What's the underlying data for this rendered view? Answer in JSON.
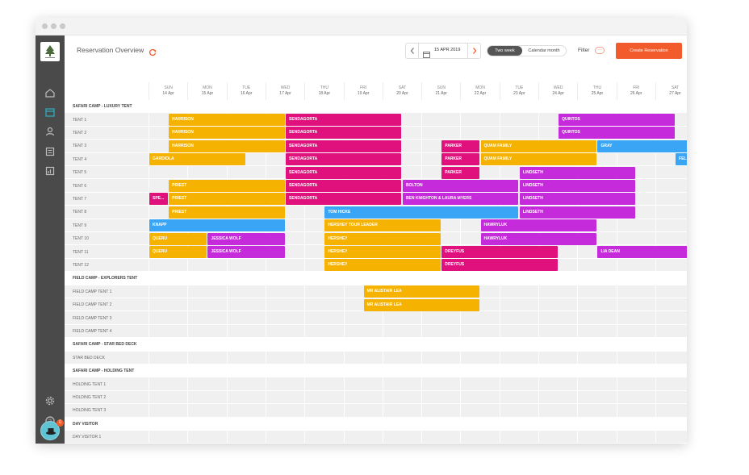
{
  "colors": {
    "orange": "#f5b200",
    "magenta": "#e0107d",
    "purple": "#c62bdb",
    "blue": "#3aa5f5",
    "accent": "#f25c2c"
  },
  "header": {
    "title": "Reservation Overview",
    "refresh_icon": "refresh-icon",
    "date": "15 APR 2019",
    "view_two_week": "Two week",
    "view_calendar_month": "Calendar month",
    "filter_label": "Filter",
    "filter_more": "···",
    "create_button": "Create Reservation"
  },
  "sidebar": {
    "icons": [
      "home-icon",
      "calendar-icon",
      "user-icon",
      "list-icon",
      "chart-icon",
      "settings-icon",
      "help-icon"
    ],
    "avatar_badge": "0"
  },
  "days": [
    {
      "name": "SUN",
      "date": "14 Apr"
    },
    {
      "name": "MON",
      "date": "15 Apr"
    },
    {
      "name": "TUE",
      "date": "16 Apr"
    },
    {
      "name": "WED",
      "date": "17 Apr"
    },
    {
      "name": "THU",
      "date": "18 Apr"
    },
    {
      "name": "FRI",
      "date": "19 Apr"
    },
    {
      "name": "SAT",
      "date": "20 Apr"
    },
    {
      "name": "SUN",
      "date": "21 Apr"
    },
    {
      "name": "MON",
      "date": "22 Apr"
    },
    {
      "name": "TUE",
      "date": "23 Apr"
    },
    {
      "name": "WED",
      "date": "24 Apr"
    },
    {
      "name": "THU",
      "date": "25 Apr"
    },
    {
      "name": "FRI",
      "date": "26 Apr"
    },
    {
      "name": "SAT",
      "date": "27 Apr"
    }
  ],
  "rows": [
    {
      "type": "cat",
      "label": "SAFARI CAMP - LUXURY TENT"
    },
    {
      "type": "res",
      "label": "TENT 1",
      "bookings": [
        {
          "name": "HARRISON",
          "start": 0.5,
          "span": 3,
          "color": "orange"
        },
        {
          "name": "SENDAGORTA",
          "start": 3.5,
          "span": 3,
          "color": "magenta"
        },
        {
          "name": "QUINTOS",
          "start": 10.5,
          "span": 3,
          "color": "purple"
        }
      ]
    },
    {
      "type": "res",
      "label": "TENT 2",
      "bookings": [
        {
          "name": "HARRISON",
          "start": 0.5,
          "span": 3,
          "color": "orange"
        },
        {
          "name": "SENDAGORTA",
          "start": 3.5,
          "span": 3,
          "color": "magenta"
        },
        {
          "name": "QUINTOS",
          "start": 10.5,
          "span": 3,
          "color": "purple"
        }
      ]
    },
    {
      "type": "res",
      "label": "TENT 3",
      "bookings": [
        {
          "name": "HARRISON",
          "start": 0.5,
          "span": 3,
          "color": "orange"
        },
        {
          "name": "SENDAGORTA",
          "start": 3.5,
          "span": 3,
          "color": "magenta"
        },
        {
          "name": "PARKER",
          "start": 7.5,
          "span": 1,
          "color": "magenta"
        },
        {
          "name": "QUAM FAMILY",
          "start": 8.5,
          "span": 3,
          "color": "orange"
        },
        {
          "name": "GRAY",
          "start": 11.5,
          "span": 2.5,
          "color": "blue"
        }
      ]
    },
    {
      "type": "res",
      "label": "TENT 4",
      "bookings": [
        {
          "name": "GARDIOLA",
          "start": 0,
          "span": 2.5,
          "color": "orange"
        },
        {
          "name": "SENDAGORTA",
          "start": 3.5,
          "span": 3,
          "color": "magenta"
        },
        {
          "name": "PARKER",
          "start": 7.5,
          "span": 1,
          "color": "magenta"
        },
        {
          "name": "QUAM FAMILY",
          "start": 8.5,
          "span": 3,
          "color": "orange"
        },
        {
          "name": "FEL...",
          "start": 13.5,
          "span": 0.5,
          "color": "blue"
        }
      ]
    },
    {
      "type": "res",
      "label": "TENT 5",
      "bookings": [
        {
          "name": "SENDAGORTA",
          "start": 3.5,
          "span": 3,
          "color": "magenta"
        },
        {
          "name": "PARKER",
          "start": 7.5,
          "span": 1,
          "color": "magenta"
        },
        {
          "name": "LINDSETH",
          "start": 9.5,
          "span": 3,
          "color": "purple"
        }
      ]
    },
    {
      "type": "res",
      "label": "TENT 6",
      "bookings": [
        {
          "name": "PRIEST",
          "start": 0.5,
          "span": 3,
          "color": "orange"
        },
        {
          "name": "SENDAGORTA",
          "start": 3.5,
          "span": 3,
          "color": "magenta"
        },
        {
          "name": "BOLTON",
          "start": 6.5,
          "span": 3,
          "color": "purple"
        },
        {
          "name": "LINDSETH",
          "start": 9.5,
          "span": 3,
          "color": "purple"
        }
      ]
    },
    {
      "type": "res",
      "label": "TENT 7",
      "bookings": [
        {
          "name": "SPE...",
          "start": 0,
          "span": 0.5,
          "color": "magenta"
        },
        {
          "name": "PRIEST",
          "start": 0.5,
          "span": 3,
          "color": "orange"
        },
        {
          "name": "SENDAGORTA",
          "start": 3.5,
          "span": 3,
          "color": "magenta"
        },
        {
          "name": "BEN KNIGHTON & LAURA MYERS",
          "start": 6.5,
          "span": 3,
          "color": "purple"
        },
        {
          "name": "LINDSETH",
          "start": 9.5,
          "span": 3,
          "color": "purple"
        }
      ]
    },
    {
      "type": "res",
      "label": "TENT 8",
      "bookings": [
        {
          "name": "PRIEST",
          "start": 0.5,
          "span": 3,
          "color": "orange"
        },
        {
          "name": "TOM HICKE",
          "start": 4.5,
          "span": 5,
          "color": "blue"
        },
        {
          "name": "LINDSETH",
          "start": 9.5,
          "span": 3,
          "color": "purple"
        }
      ]
    },
    {
      "type": "res",
      "label": "TENT 9",
      "bookings": [
        {
          "name": "KNAPP",
          "start": 0,
          "span": 3.5,
          "color": "blue"
        },
        {
          "name": "HERSHEY TOUR LEADER",
          "start": 4.5,
          "span": 3,
          "color": "orange"
        },
        {
          "name": "HAWRYLUK",
          "start": 8.5,
          "span": 3,
          "color": "purple"
        }
      ]
    },
    {
      "type": "res",
      "label": "TENT 10",
      "bookings": [
        {
          "name": "QUERU",
          "start": 0,
          "span": 1.5,
          "color": "orange"
        },
        {
          "name": "JESSICA WOLF",
          "start": 1.5,
          "span": 2,
          "color": "purple"
        },
        {
          "name": "HERSHEY",
          "start": 4.5,
          "span": 3,
          "color": "orange"
        },
        {
          "name": "HAWRYLUK",
          "start": 8.5,
          "span": 3,
          "color": "purple"
        }
      ]
    },
    {
      "type": "res",
      "label": "TENT 11",
      "bookings": [
        {
          "name": "QUERU",
          "start": 0,
          "span": 1.5,
          "color": "orange"
        },
        {
          "name": "JESSICA WOLF",
          "start": 1.5,
          "span": 2,
          "color": "purple"
        },
        {
          "name": "HERSHEY",
          "start": 4.5,
          "span": 3,
          "color": "orange"
        },
        {
          "name": "DREYFUS",
          "start": 7.5,
          "span": 3,
          "color": "magenta"
        },
        {
          "name": "LIA DEAN",
          "start": 11.5,
          "span": 2.5,
          "color": "purple"
        }
      ]
    },
    {
      "type": "res",
      "label": "TENT 12",
      "bookings": [
        {
          "name": "HERSHEY",
          "start": 4.5,
          "span": 3,
          "color": "orange"
        },
        {
          "name": "DREYFUS",
          "start": 7.5,
          "span": 3,
          "color": "magenta"
        }
      ]
    },
    {
      "type": "cat",
      "label": "FIELD CAMP - EXPLORERS TENT"
    },
    {
      "type": "res",
      "label": "FIELD CAMP TENT 1",
      "bookings": [
        {
          "name": "MR ALISTAIR LEA",
          "start": 5.5,
          "span": 3,
          "color": "orange"
        }
      ]
    },
    {
      "type": "res",
      "label": "FIELD CAMP TENT 2",
      "bookings": [
        {
          "name": "MR ALISTAIR LEA",
          "start": 5.5,
          "span": 3,
          "color": "orange"
        }
      ]
    },
    {
      "type": "res",
      "label": "FIELD CAMP TENT 3",
      "bookings": []
    },
    {
      "type": "res",
      "label": "FIELD CAMP TENT 4",
      "bookings": []
    },
    {
      "type": "cat",
      "label": "SAFARI CAMP - STAR BED DECK"
    },
    {
      "type": "res",
      "label": "STAR BED DECK",
      "bookings": []
    },
    {
      "type": "cat",
      "label": "SAFARI CAMP - HOLDING TENT"
    },
    {
      "type": "res",
      "label": "HOLDING TENT 1",
      "bookings": []
    },
    {
      "type": "res",
      "label": "HOLDING TENT 2",
      "bookings": []
    },
    {
      "type": "res",
      "label": "HOLDING TENT 3",
      "bookings": []
    },
    {
      "type": "cat",
      "label": "DAY VISITOR"
    },
    {
      "type": "res",
      "label": "DAY VISITOR 1",
      "bookings": []
    },
    {
      "type": "res",
      "label": "DAY VISITOR 2",
      "bookings": []
    }
  ]
}
